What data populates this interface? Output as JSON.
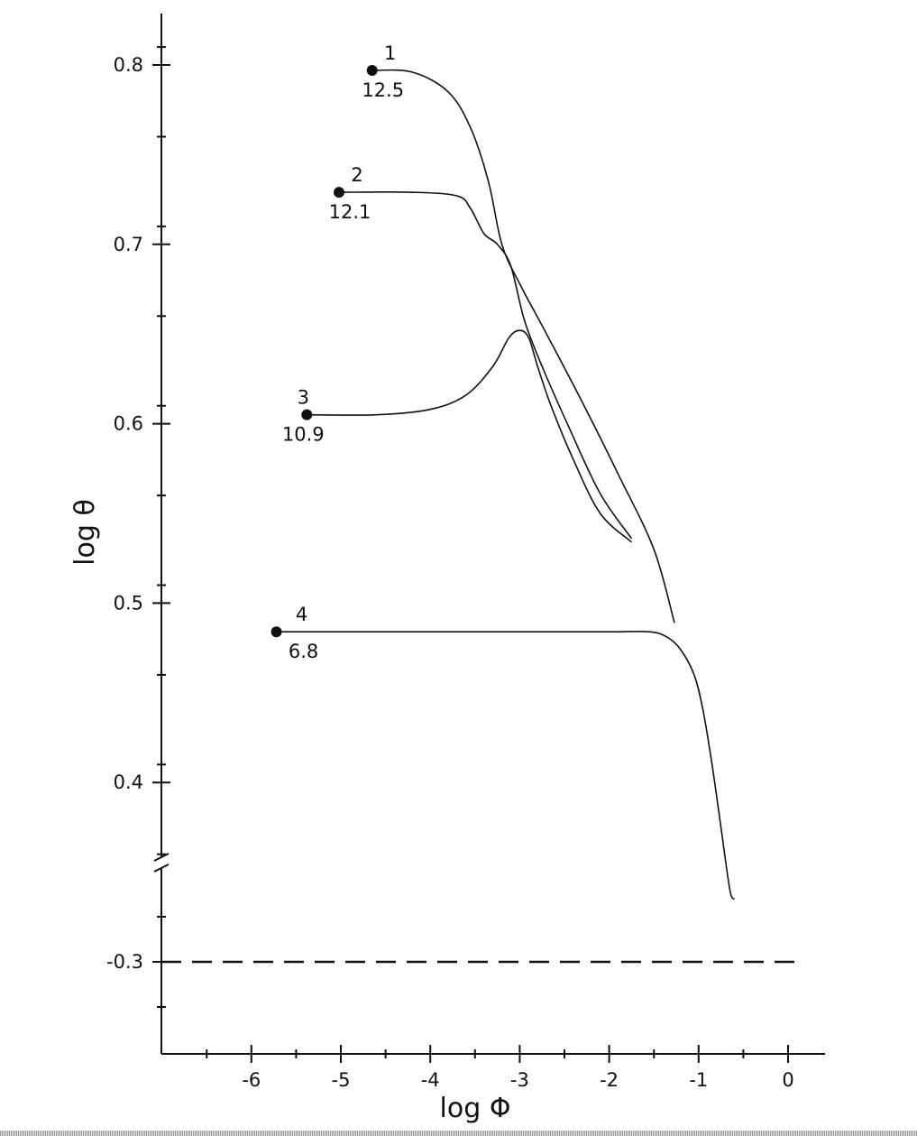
{
  "chart_data": {
    "type": "line",
    "xlabel": "log Φ",
    "ylabel": "log θ",
    "xlim": [
      -7,
      0.4
    ],
    "ylim_upper": [
      0.36,
      0.83
    ],
    "ylim_lower": [
      -0.35,
      -0.25
    ],
    "axis_break": true,
    "x_ticks": [
      {
        "value": -6,
        "label": "-6"
      },
      {
        "value": -5,
        "label": "-5"
      },
      {
        "value": -4,
        "label": "-4"
      },
      {
        "value": -3,
        "label": "-3"
      },
      {
        "value": -2,
        "label": "-2"
      },
      {
        "value": -1,
        "label": "-1"
      },
      {
        "value": 0,
        "label": "0"
      }
    ],
    "y_ticks_upper": [
      {
        "value": 0.8,
        "label": "0.8"
      },
      {
        "value": 0.7,
        "label": "0.7"
      },
      {
        "value": 0.6,
        "label": "0.6"
      },
      {
        "value": 0.5,
        "label": "0.5"
      },
      {
        "value": 0.4,
        "label": "0.4"
      }
    ],
    "y_ticks_lower": [
      {
        "value": -0.3,
        "label": "-0.3"
      }
    ],
    "reference_line": {
      "y": -0.3,
      "style": "dashed"
    },
    "series": [
      {
        "label_top": "1",
        "label_bottom": "12.5",
        "marker": "start",
        "x": [
          -4.65,
          -4.2,
          -3.8,
          -3.55,
          -3.35,
          -3.2,
          -3.0,
          -2.7,
          -2.3,
          -1.9,
          -1.5,
          -1.27
        ],
        "y": [
          0.797,
          0.796,
          0.785,
          0.765,
          0.735,
          0.7,
          0.678,
          0.65,
          0.612,
          0.572,
          0.53,
          0.489
        ]
      },
      {
        "label_top": "2",
        "label_bottom": "12.1",
        "marker": "start",
        "x": [
          -5.02,
          -4.2,
          -3.7,
          -3.55,
          -3.4,
          -3.25,
          -3.1,
          -2.95,
          -2.75,
          -2.45,
          -2.1,
          -1.75
        ],
        "y": [
          0.729,
          0.729,
          0.727,
          0.72,
          0.706,
          0.7,
          0.688,
          0.658,
          0.632,
          0.598,
          0.561,
          0.536
        ]
      },
      {
        "label_top": "3",
        "label_bottom": "10.9",
        "marker": "start",
        "x": [
          -5.38,
          -4.6,
          -4.0,
          -3.6,
          -3.3,
          -3.12,
          -3.0,
          -2.9,
          -2.8,
          -2.65,
          -2.4,
          -2.1,
          -1.75
        ],
        "y": [
          0.605,
          0.605,
          0.608,
          0.616,
          0.632,
          0.648,
          0.652,
          0.648,
          0.632,
          0.61,
          0.58,
          0.55,
          0.534
        ]
      },
      {
        "label_top": "4",
        "label_bottom": "6.8",
        "marker": "start",
        "x": [
          -5.72,
          -4.5,
          -3.0,
          -2.0,
          -1.55,
          -1.35,
          -1.2,
          -1.05,
          -0.95,
          -0.85,
          -0.75,
          -0.65,
          -0.6
        ],
        "y": [
          0.484,
          0.484,
          0.484,
          0.484,
          0.484,
          0.481,
          0.474,
          0.46,
          0.44,
          0.41,
          0.375,
          0.34,
          0.335
        ]
      }
    ]
  }
}
